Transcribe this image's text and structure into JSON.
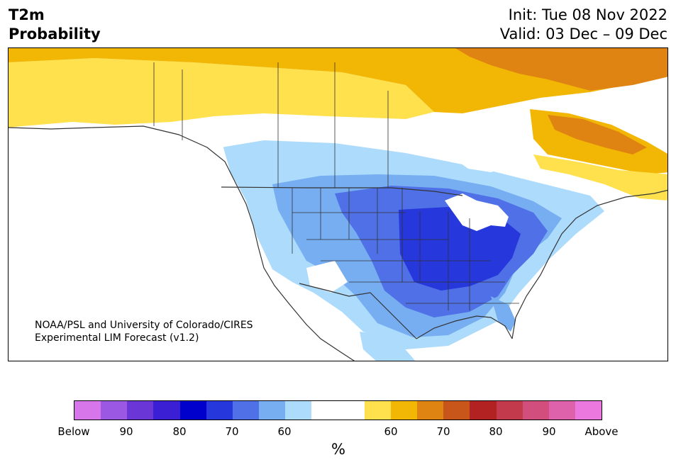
{
  "title": {
    "line1": "T2m",
    "line2": "Probability",
    "init": "Init: Tue 08 Nov 2022",
    "valid": "Valid: 03 Dec – 09 Dec"
  },
  "credit": {
    "line1": "NOAA/PSL and University of Colorado/CIRES",
    "line2": "Experimental LIM Forecast (v1.2)"
  },
  "colorbar": {
    "colors": [
      "#d776ea",
      "#9b58e3",
      "#6a37d6",
      "#3a1fd4",
      "#0000cd",
      "#2637dc",
      "#4f70e6",
      "#77aef2",
      "#acdbfc",
      "#ffffff",
      "#ffffff",
      "#ffe04d",
      "#f2b705",
      "#df8412",
      "#c8551a",
      "#b22222",
      "#c33a4c",
      "#d24e7c",
      "#dd62ab",
      "#eb78df"
    ],
    "tick_labels": [
      "Below",
      "90",
      "80",
      "70",
      "60",
      "60",
      "70",
      "80",
      "90",
      "Above"
    ],
    "units": "%"
  },
  "legend_colors": {
    "below_60": "#acdbfc",
    "below_70": "#4f70e6",
    "below_80": "#2637dc",
    "above_60": "#ffe04d",
    "above_70": "#f2b705",
    "above_80": "#df8412"
  }
}
